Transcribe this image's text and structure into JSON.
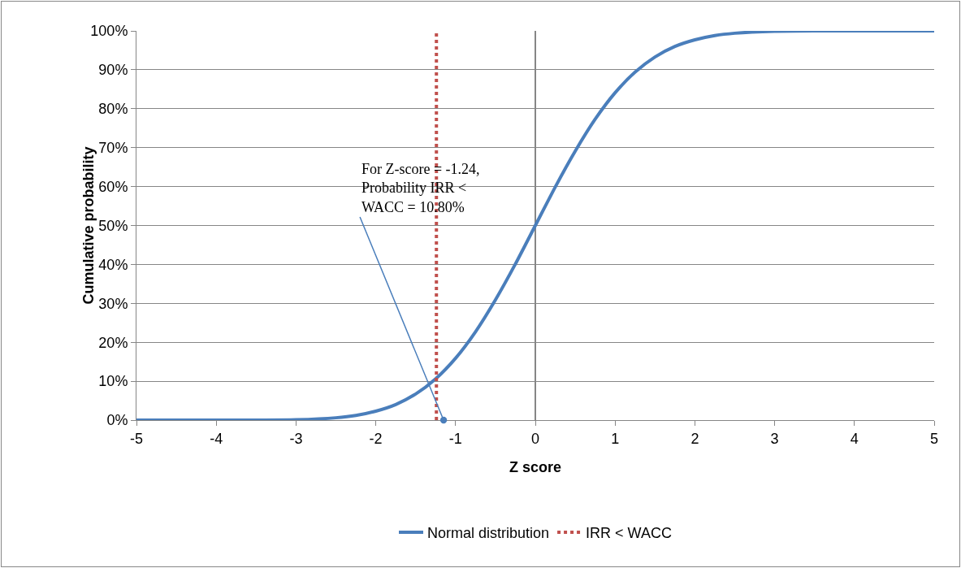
{
  "chart_data": {
    "type": "line",
    "xlabel": "Z score",
    "ylabel": "Cumulative probability",
    "series": [
      {
        "name": "Normal distribution",
        "color": "#4a7ebb",
        "line_style": "solid",
        "x": [
          -5,
          -4,
          -3.5,
          -3,
          -2.5,
          -2.25,
          -2,
          -1.75,
          -1.5,
          -1.25,
          -1,
          -0.75,
          -0.5,
          -0.25,
          0,
          0.25,
          0.5,
          0.75,
          1,
          1.25,
          1.5,
          1.75,
          2,
          2.25,
          2.5,
          3,
          3.5,
          4,
          5
        ],
        "values": [
          0,
          0,
          0,
          0.1,
          0.6,
          1.2,
          2.3,
          4,
          6.7,
          10.6,
          15.9,
          22.7,
          30.9,
          40.1,
          50,
          59.9,
          69.1,
          77.3,
          84.1,
          89.4,
          93.3,
          96,
          97.7,
          98.8,
          99.4,
          99.9,
          100,
          100,
          100
        ]
      },
      {
        "name": "IRR < WACC",
        "color": "#c0504d",
        "line_style": "dotted",
        "x": [
          -1.24,
          -1.24
        ],
        "values": [
          0,
          100
        ]
      }
    ],
    "xlim": [
      -5,
      5
    ],
    "xticks": [
      -5,
      -4,
      -3,
      -2,
      -1,
      0,
      1,
      2,
      3,
      4,
      5
    ],
    "ylim": [
      0,
      100
    ],
    "yticks": [
      {
        "value": 0,
        "label": "0%"
      },
      {
        "value": 10,
        "label": "10%"
      },
      {
        "value": 20,
        "label": "20%"
      },
      {
        "value": 30,
        "label": "30%"
      },
      {
        "value": 40,
        "label": "40%"
      },
      {
        "value": 50,
        "label": "50%"
      },
      {
        "value": 60,
        "label": "60%"
      },
      {
        "value": 70,
        "label": "70%"
      },
      {
        "value": 80,
        "label": "80%"
      },
      {
        "value": 90,
        "label": "90%"
      },
      {
        "value": 100,
        "label": "100%"
      }
    ],
    "annotations": [
      {
        "text": "For Z-score = -1.24,\nProbability IRR <\nWACC = 10.80%",
        "x": -1.15,
        "y": 0
      }
    ],
    "grid": "y",
    "legend": "bottom",
    "marker": "none"
  }
}
